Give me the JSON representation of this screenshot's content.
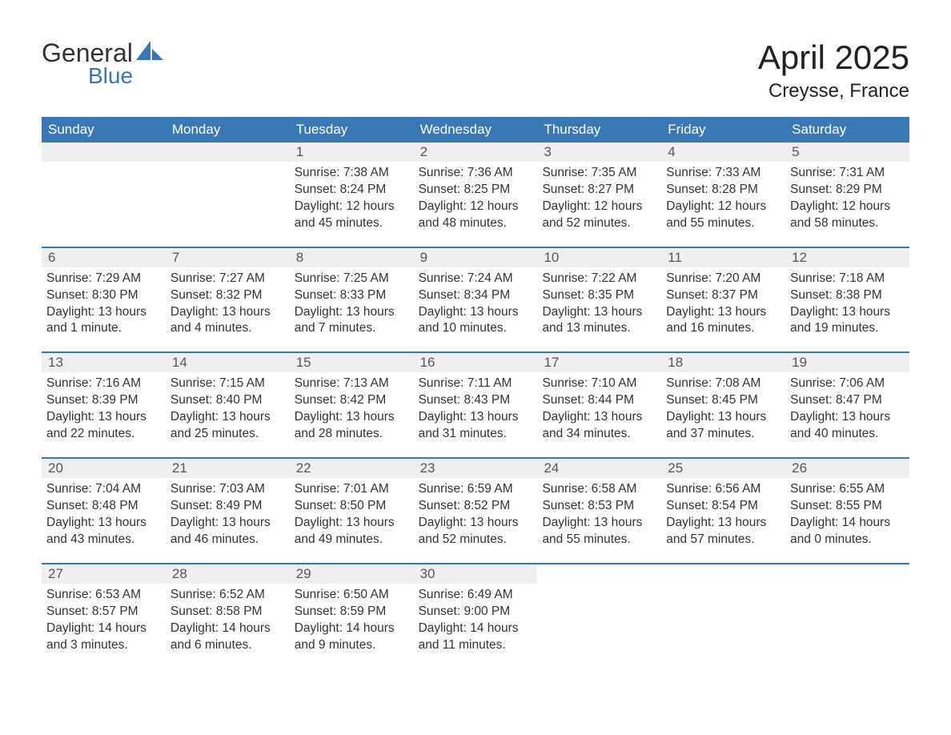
{
  "logo": {
    "text_top": "General",
    "text_bottom": "Blue",
    "accent_color": "#3a78b5"
  },
  "title": "April 2025",
  "subtitle": "Creysse, France",
  "style": {
    "header_bg": "#3a78b5",
    "header_fg": "#ffffff",
    "daynum_bg": "#efefef",
    "daynum_fg": "#555555",
    "body_bg": "#ffffff",
    "body_fg": "#333333",
    "row_border_color": "#3a78b5",
    "title_fontsize": 42,
    "subtitle_fontsize": 24,
    "header_fontsize": 17,
    "body_fontsize": 15.5
  },
  "weekdays": [
    "Sunday",
    "Monday",
    "Tuesday",
    "Wednesday",
    "Thursday",
    "Friday",
    "Saturday"
  ],
  "weeks": [
    [
      null,
      null,
      {
        "n": "1",
        "sunrise": "7:38 AM",
        "sunset": "8:24 PM",
        "daylight": "12 hours and 45 minutes."
      },
      {
        "n": "2",
        "sunrise": "7:36 AM",
        "sunset": "8:25 PM",
        "daylight": "12 hours and 48 minutes."
      },
      {
        "n": "3",
        "sunrise": "7:35 AM",
        "sunset": "8:27 PM",
        "daylight": "12 hours and 52 minutes."
      },
      {
        "n": "4",
        "sunrise": "7:33 AM",
        "sunset": "8:28 PM",
        "daylight": "12 hours and 55 minutes."
      },
      {
        "n": "5",
        "sunrise": "7:31 AM",
        "sunset": "8:29 PM",
        "daylight": "12 hours and 58 minutes."
      }
    ],
    [
      {
        "n": "6",
        "sunrise": "7:29 AM",
        "sunset": "8:30 PM",
        "daylight": "13 hours and 1 minute."
      },
      {
        "n": "7",
        "sunrise": "7:27 AM",
        "sunset": "8:32 PM",
        "daylight": "13 hours and 4 minutes."
      },
      {
        "n": "8",
        "sunrise": "7:25 AM",
        "sunset": "8:33 PM",
        "daylight": "13 hours and 7 minutes."
      },
      {
        "n": "9",
        "sunrise": "7:24 AM",
        "sunset": "8:34 PM",
        "daylight": "13 hours and 10 minutes."
      },
      {
        "n": "10",
        "sunrise": "7:22 AM",
        "sunset": "8:35 PM",
        "daylight": "13 hours and 13 minutes."
      },
      {
        "n": "11",
        "sunrise": "7:20 AM",
        "sunset": "8:37 PM",
        "daylight": "13 hours and 16 minutes."
      },
      {
        "n": "12",
        "sunrise": "7:18 AM",
        "sunset": "8:38 PM",
        "daylight": "13 hours and 19 minutes."
      }
    ],
    [
      {
        "n": "13",
        "sunrise": "7:16 AM",
        "sunset": "8:39 PM",
        "daylight": "13 hours and 22 minutes."
      },
      {
        "n": "14",
        "sunrise": "7:15 AM",
        "sunset": "8:40 PM",
        "daylight": "13 hours and 25 minutes."
      },
      {
        "n": "15",
        "sunrise": "7:13 AM",
        "sunset": "8:42 PM",
        "daylight": "13 hours and 28 minutes."
      },
      {
        "n": "16",
        "sunrise": "7:11 AM",
        "sunset": "8:43 PM",
        "daylight": "13 hours and 31 minutes."
      },
      {
        "n": "17",
        "sunrise": "7:10 AM",
        "sunset": "8:44 PM",
        "daylight": "13 hours and 34 minutes."
      },
      {
        "n": "18",
        "sunrise": "7:08 AM",
        "sunset": "8:45 PM",
        "daylight": "13 hours and 37 minutes."
      },
      {
        "n": "19",
        "sunrise": "7:06 AM",
        "sunset": "8:47 PM",
        "daylight": "13 hours and 40 minutes."
      }
    ],
    [
      {
        "n": "20",
        "sunrise": "7:04 AM",
        "sunset": "8:48 PM",
        "daylight": "13 hours and 43 minutes."
      },
      {
        "n": "21",
        "sunrise": "7:03 AM",
        "sunset": "8:49 PM",
        "daylight": "13 hours and 46 minutes."
      },
      {
        "n": "22",
        "sunrise": "7:01 AM",
        "sunset": "8:50 PM",
        "daylight": "13 hours and 49 minutes."
      },
      {
        "n": "23",
        "sunrise": "6:59 AM",
        "sunset": "8:52 PM",
        "daylight": "13 hours and 52 minutes."
      },
      {
        "n": "24",
        "sunrise": "6:58 AM",
        "sunset": "8:53 PM",
        "daylight": "13 hours and 55 minutes."
      },
      {
        "n": "25",
        "sunrise": "6:56 AM",
        "sunset": "8:54 PM",
        "daylight": "13 hours and 57 minutes."
      },
      {
        "n": "26",
        "sunrise": "6:55 AM",
        "sunset": "8:55 PM",
        "daylight": "14 hours and 0 minutes."
      }
    ],
    [
      {
        "n": "27",
        "sunrise": "6:53 AM",
        "sunset": "8:57 PM",
        "daylight": "14 hours and 3 minutes."
      },
      {
        "n": "28",
        "sunrise": "6:52 AM",
        "sunset": "8:58 PM",
        "daylight": "14 hours and 6 minutes."
      },
      {
        "n": "29",
        "sunrise": "6:50 AM",
        "sunset": "8:59 PM",
        "daylight": "14 hours and 9 minutes."
      },
      {
        "n": "30",
        "sunrise": "6:49 AM",
        "sunset": "9:00 PM",
        "daylight": "14 hours and 11 minutes."
      },
      null,
      null,
      null
    ]
  ],
  "labels": {
    "sunrise": "Sunrise: ",
    "sunset": "Sunset: ",
    "daylight": "Daylight: "
  }
}
